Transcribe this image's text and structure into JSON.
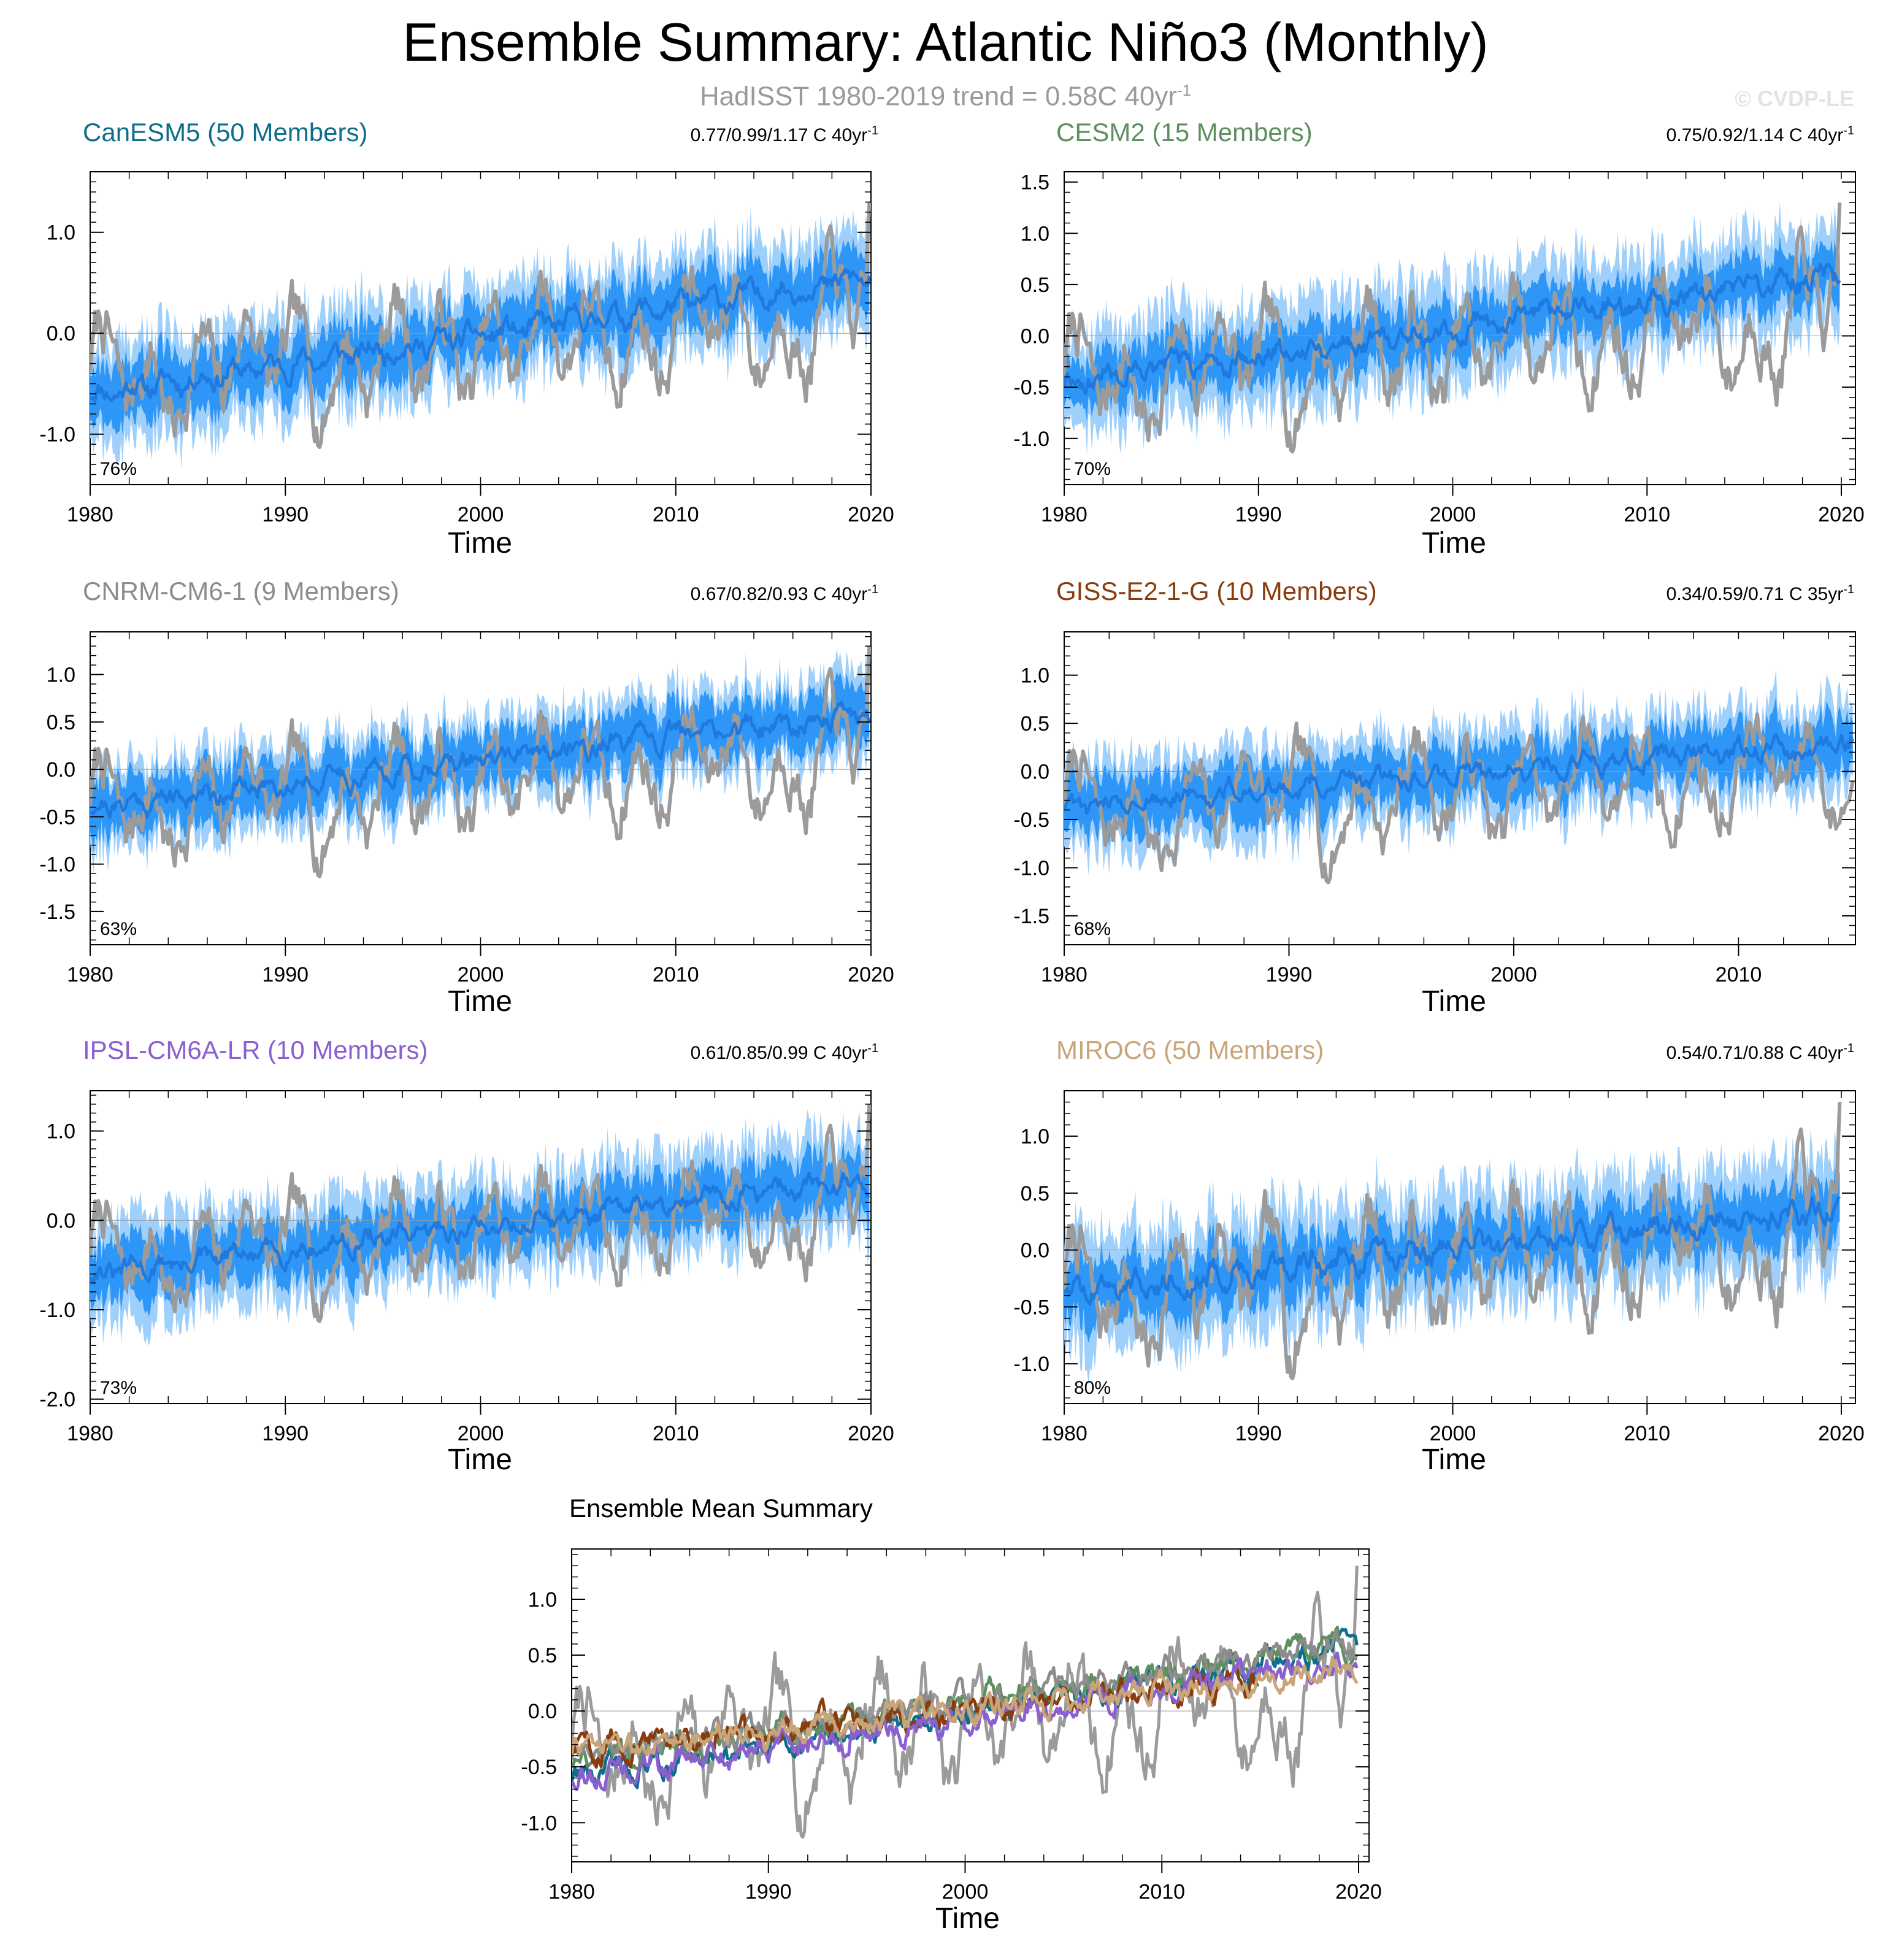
{
  "title": "Ensemble Summary: Atlantic Niño3 (Monthly)",
  "subtitle_prefix": "HadISST 1980-2019 trend = 0.58C 40yr",
  "subtitle_sup": "-1",
  "watermark": "© CVDP-LE",
  "colors": {
    "obs": "#9b9b9b",
    "band_outer": "#9fd0fb",
    "band_inner": "#2e96f6",
    "mean": "#1f7ae0"
  },
  "chart_data": [
    {
      "type": "line",
      "model": "CanESM5",
      "members": 50,
      "title": "CanESM5 (50 Members)",
      "title_color": "#0f6e8c",
      "stats": "0.77/0.99/1.17 C 40yr",
      "stats_sup": "-1",
      "percent_label": "76%",
      "xlabel": "Time",
      "xlim": [
        1980,
        2020
      ],
      "xticks": [
        1980,
        1990,
        2000,
        2010,
        2020
      ],
      "ylim": [
        -1.5,
        1.6
      ],
      "yticks": [
        -1.0,
        0.0,
        1.0
      ],
      "ytick_labels": [
        "-1.0",
        "0.0",
        "1.0"
      ],
      "ens_mean_start": -0.6,
      "ens_mean_end": 0.55,
      "inner_half_width": 0.28,
      "outer_half_width": 0.5,
      "series": [
        {
          "name": "HadISST",
          "role": "observations",
          "color": "#9b9b9b",
          "trend_start": -0.45,
          "trend_end": 0.2,
          "amplitude": 0.45,
          "end_value": 1.3
        },
        {
          "name": "Ensemble mean",
          "role": "ensemble-mean",
          "color": "#1f7ae0"
        }
      ]
    },
    {
      "type": "line",
      "model": "CESM2",
      "members": 15,
      "title": "CESM2 (15 Members)",
      "title_color": "#5f8f60",
      "stats": "0.75/0.92/1.14 C 40yr",
      "stats_sup": "-1",
      "percent_label": "70%",
      "xlabel": "Time",
      "xlim": [
        1980,
        2020
      ],
      "xticks": [
        1980,
        1990,
        2000,
        2010,
        2020
      ],
      "ylim": [
        -1.45,
        1.6
      ],
      "yticks": [
        -1.0,
        -0.5,
        0.0,
        0.5,
        1.0,
        1.5
      ],
      "ytick_labels": [
        "-1.0",
        "-0.5",
        "0.0",
        "0.5",
        "1.0",
        "1.5"
      ],
      "ens_mean_start": -0.45,
      "ens_mean_end": 0.6,
      "inner_half_width": 0.25,
      "outer_half_width": 0.5,
      "series": [
        {
          "name": "HadISST",
          "role": "observations",
          "color": "#9b9b9b",
          "trend_start": -0.45,
          "trend_end": 0.2,
          "amplitude": 0.45,
          "end_value": 1.3
        },
        {
          "name": "Ensemble mean",
          "role": "ensemble-mean",
          "color": "#1f7ae0"
        }
      ]
    },
    {
      "type": "line",
      "model": "CNRM-CM6-1",
      "members": 9,
      "title": "CNRM-CM6-1 (9 Members)",
      "title_color": "#8c8c8c",
      "stats": "0.67/0.82/0.93 C 40yr",
      "stats_sup": "-1",
      "percent_label": "63%",
      "xlabel": "Time",
      "xlim": [
        1980,
        2020
      ],
      "xticks": [
        1980,
        1990,
        2000,
        2010,
        2020
      ],
      "ylim": [
        -1.85,
        1.45
      ],
      "yticks": [
        -1.5,
        -1.0,
        -0.5,
        0.0,
        0.5,
        1.0
      ],
      "ytick_labels": [
        "-1.5",
        "-1.0",
        "-0.5",
        "0.0",
        "0.5",
        "1.0"
      ],
      "ens_mean_start": -0.4,
      "ens_mean_end": 0.6,
      "inner_half_width": 0.28,
      "outer_half_width": 0.45,
      "series": [
        {
          "name": "HadISST",
          "role": "observations",
          "color": "#9b9b9b",
          "trend_start": -0.45,
          "trend_end": 0.2,
          "amplitude": 0.45,
          "end_value": 1.3
        },
        {
          "name": "Ensemble mean",
          "role": "ensemble-mean",
          "color": "#1f7ae0"
        }
      ]
    },
    {
      "type": "line",
      "model": "GISS-E2-1-G",
      "members": 10,
      "title": "GISS-E2-1-G (10 Members)",
      "title_color": "#8a3c0e",
      "stats": "0.34/0.59/0.71 C 35yr",
      "stats_sup": "-1",
      "percent_label": "68%",
      "xlabel": "Time",
      "xlim": [
        1980,
        2015.2
      ],
      "xticks": [
        1980,
        1990,
        2000,
        2010
      ],
      "ylim": [
        -1.8,
        1.45
      ],
      "yticks": [
        -1.5,
        -1.0,
        -0.5,
        0.0,
        0.5,
        1.0
      ],
      "ytick_labels": [
        "-1.5",
        "-1.0",
        "-0.5",
        "0.0",
        "0.5",
        "1.0"
      ],
      "ens_mean_start": -0.35,
      "ens_mean_end": 0.3,
      "inner_half_width": 0.28,
      "outer_half_width": 0.48,
      "series": [
        {
          "name": "HadISST",
          "role": "observations",
          "color": "#9b9b9b",
          "trend_start": -0.45,
          "trend_end": 0.05,
          "amplitude": 0.45,
          "end_value": -0.1
        },
        {
          "name": "Ensemble mean",
          "role": "ensemble-mean",
          "color": "#1f7ae0"
        }
      ]
    },
    {
      "type": "line",
      "model": "IPSL-CM6A-LR",
      "members": 10,
      "title": "IPSL-CM6A-LR (10 Members)",
      "title_color": "#8a5fd0",
      "stats": "0.61/0.85/0.99 C 40yr",
      "stats_sup": "-1",
      "percent_label": "73%",
      "xlabel": "Time",
      "xlim": [
        1980,
        2020
      ],
      "xticks": [
        1980,
        1990,
        2000,
        2010,
        2020
      ],
      "ylim": [
        -2.05,
        1.45
      ],
      "yticks": [
        -2.0,
        -1.0,
        0.0,
        1.0
      ],
      "ytick_labels": [
        "-2.0",
        "-1.0",
        "0.0",
        "1.0"
      ],
      "ens_mean_start": -0.6,
      "ens_mean_end": 0.45,
      "inner_half_width": 0.3,
      "outer_half_width": 0.55,
      "series": [
        {
          "name": "HadISST",
          "role": "observations",
          "color": "#9b9b9b",
          "trend_start": -0.45,
          "trend_end": 0.2,
          "amplitude": 0.45,
          "end_value": 1.3
        },
        {
          "name": "Ensemble mean",
          "role": "ensemble-mean",
          "color": "#1f7ae0"
        }
      ]
    },
    {
      "type": "line",
      "model": "MIROC6",
      "members": 50,
      "title": "MIROC6 (50 Members)",
      "title_color": "#c9a57a",
      "stats": "0.54/0.71/0.88 C 40yr",
      "stats_sup": "-1",
      "percent_label": "80%",
      "xlabel": "Time",
      "xlim": [
        1980,
        2020
      ],
      "xticks": [
        1980,
        1990,
        2000,
        2010,
        2020
      ],
      "ylim": [
        -1.35,
        1.4
      ],
      "yticks": [
        -1.0,
        -0.5,
        0.0,
        0.5,
        1.0
      ],
      "ytick_labels": [
        "-1.0",
        "-0.5",
        "0.0",
        "0.5",
        "1.0"
      ],
      "ens_mean_start": -0.35,
      "ens_mean_end": 0.35,
      "inner_half_width": 0.25,
      "outer_half_width": 0.5,
      "series": [
        {
          "name": "HadISST",
          "role": "observations",
          "color": "#9b9b9b",
          "trend_start": -0.45,
          "trend_end": 0.2,
          "amplitude": 0.45,
          "end_value": 1.3
        },
        {
          "name": "Ensemble mean",
          "role": "ensemble-mean",
          "color": "#1f7ae0"
        }
      ]
    },
    {
      "type": "line",
      "model": "Ensemble Mean Summary",
      "title": "Ensemble Mean Summary",
      "title_color": "#000000",
      "xlabel": "Time",
      "xlim": [
        1980,
        2020
      ],
      "xticks": [
        1980,
        1990,
        2000,
        2010,
        2020
      ],
      "ylim": [
        -1.35,
        1.45
      ],
      "yticks": [
        -1.0,
        -0.5,
        0.0,
        0.5,
        1.0
      ],
      "ytick_labels": [
        "-1.0",
        "-0.5",
        "0.0",
        "0.5",
        "1.0"
      ],
      "series": [
        {
          "name": "HadISST",
          "color": "#9b9b9b",
          "trend_start": -0.45,
          "trend_end": 0.2,
          "end_value": 1.3
        },
        {
          "name": "CanESM5",
          "color": "#0f6e8c",
          "start": -0.6,
          "end": 0.55,
          "end_year": 2020
        },
        {
          "name": "CESM2",
          "color": "#5f8f60",
          "start": -0.45,
          "end": 0.6,
          "end_year": 2020
        },
        {
          "name": "CNRM-CM6-1",
          "color": "#8c8c8c",
          "start": -0.4,
          "end": 0.6,
          "end_year": 2020
        },
        {
          "name": "GISS-E2-1-G",
          "color": "#8a3c0e",
          "start": -0.35,
          "end": 0.3,
          "end_year": 2015
        },
        {
          "name": "IPSL-CM6A-LR",
          "color": "#8a5fd0",
          "start": -0.6,
          "end": 0.45,
          "end_year": 2020
        },
        {
          "name": "MIROC6",
          "color": "#c9a57a",
          "start": -0.35,
          "end": 0.35,
          "end_year": 2020
        }
      ]
    }
  ]
}
